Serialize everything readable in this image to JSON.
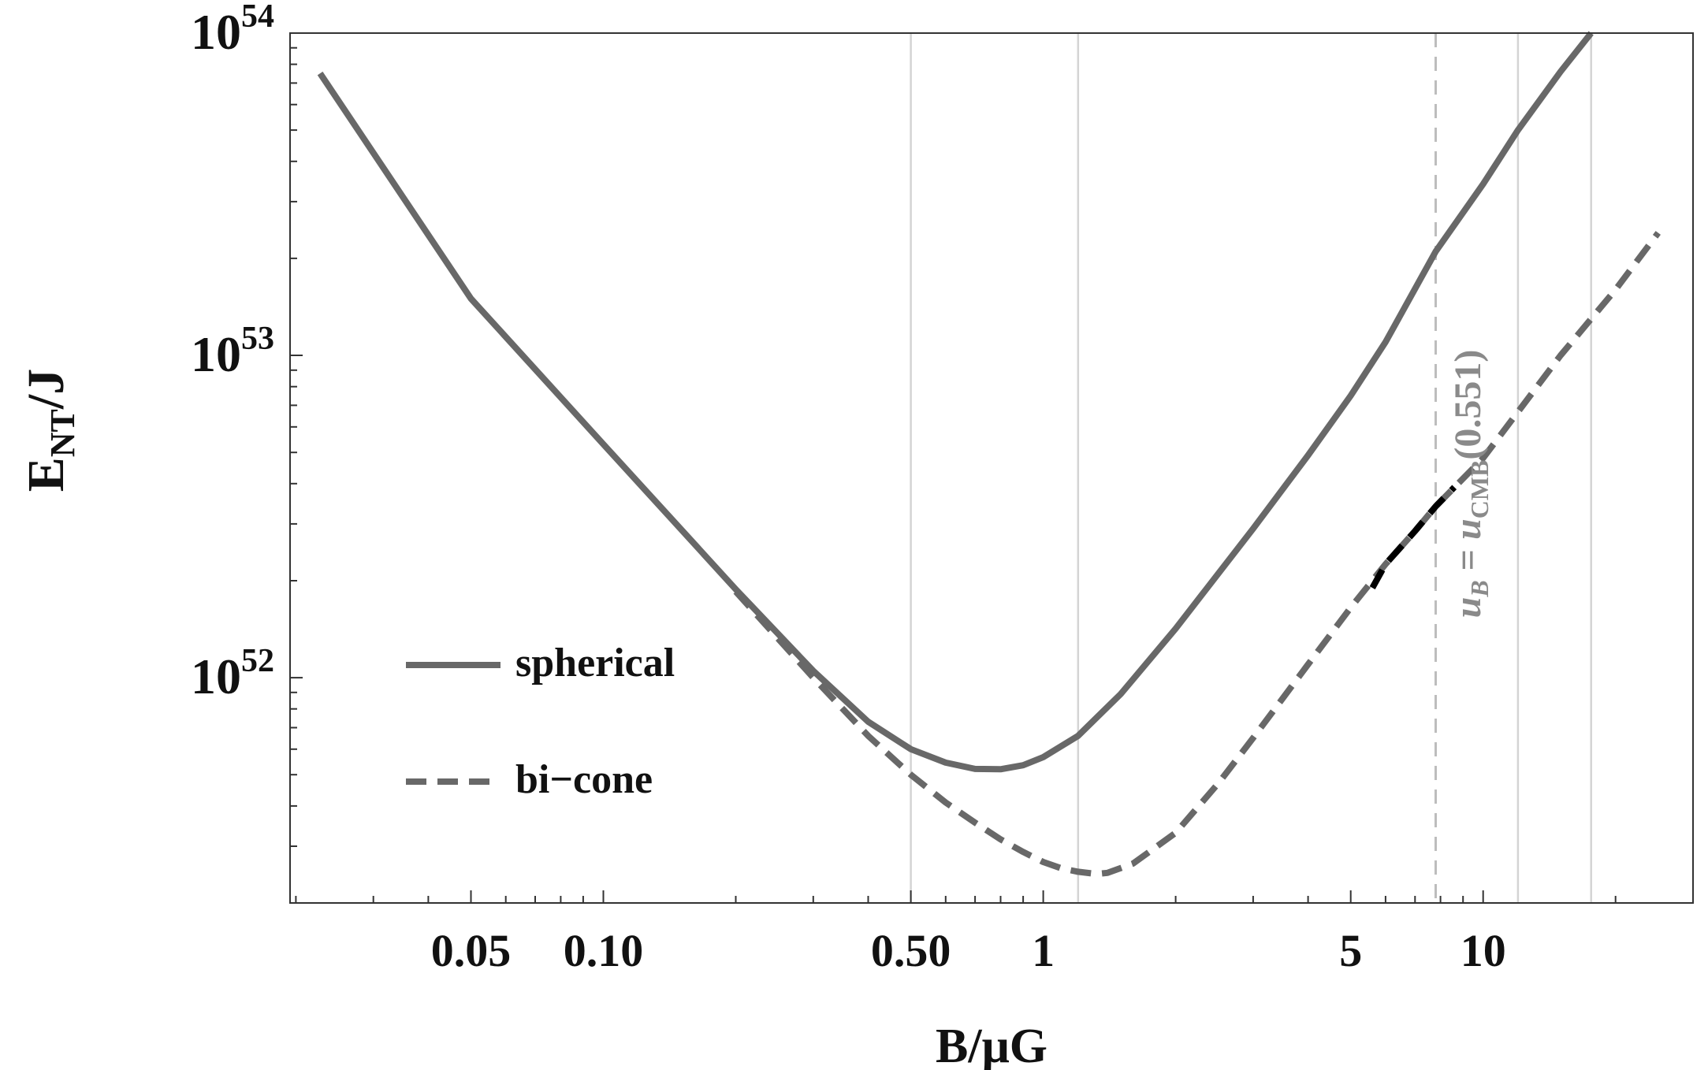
{
  "chart_data": {
    "type": "line",
    "xlabel": "B/μG",
    "ylabel": {
      "main": "E",
      "sub": "NT",
      "tail": "/J"
    },
    "x_scale": "log",
    "y_scale": "log",
    "xlim": [
      0.0194,
      30
    ],
    "ylim": [
      2e+51,
      1e+54
    ],
    "xticks": [
      {
        "value": 0.05,
        "label": "0.05"
      },
      {
        "value": 0.1,
        "label": "0.10"
      },
      {
        "value": 0.5,
        "label": "0.50"
      },
      {
        "value": 1,
        "label": "1"
      },
      {
        "value": 5,
        "label": "5"
      },
      {
        "value": 10,
        "label": "10"
      }
    ],
    "yticks": [
      {
        "value": 1e+52,
        "base": "10",
        "exp": "52"
      },
      {
        "value": 1e+53,
        "base": "10",
        "exp": "53"
      },
      {
        "value": 1e+54,
        "base": "10",
        "exp": "54"
      }
    ],
    "vertical_gridlines": [
      0.5,
      1.2,
      12,
      17.6
    ],
    "series": [
      {
        "name": "spherical",
        "style": "solid",
        "color": "#686868",
        "x": [
          0.0227,
          0.05,
          0.1,
          0.2,
          0.3,
          0.4,
          0.5,
          0.6,
          0.7,
          0.8,
          0.9,
          1.0,
          1.2,
          1.5,
          2.0,
          3.0,
          4.0,
          5.0,
          6.0,
          7.8,
          10,
          12,
          15,
          17.6
        ],
        "y": [
          7.5e+53,
          1.5e+53,
          5.3e+52,
          1.88e+52,
          1.05e+52,
          7.3e+51,
          6e+51,
          5.45e+51,
          5.21e+51,
          5.2e+51,
          5.35e+51,
          5.67e+51,
          6.6e+51,
          8.9e+51,
          1.42e+52,
          2.9e+52,
          4.9e+52,
          7.5e+52,
          1.1e+53,
          2.1e+53,
          3.4e+53,
          5e+53,
          7.6e+53,
          1e+54
        ]
      },
      {
        "name": "bi−cone",
        "style": "dashed",
        "color": "#686868",
        "x": [
          0.2,
          0.3,
          0.4,
          0.5,
          0.6,
          0.7,
          0.8,
          0.9,
          1.0,
          1.1,
          1.2,
          1.32,
          1.4,
          1.6,
          2.0,
          2.5,
          3.0,
          4.0,
          5.0,
          6.0,
          7.0,
          7.8,
          10,
          15,
          20,
          25
        ],
        "y": [
          1.85e+52,
          1e+52,
          6.6e+51,
          5e+51,
          4.1e+51,
          3.55e+51,
          3.15e+51,
          2.88e+51,
          2.68e+51,
          2.56e+51,
          2.5e+51,
          2.46e+51,
          2.48e+51,
          2.65e+51,
          3.3e+51,
          4.7e+51,
          6.5e+51,
          1.1e+52,
          1.65e+52,
          2.25e+52,
          2.85e+52,
          3.4e+52,
          4.8e+52,
          1e+53,
          1.6e+53,
          2.4e+53
        ]
      },
      {
        "name": "",
        "style": "dashed",
        "color": "#000000",
        "x": [
          5.6,
          6.0,
          7.0,
          7.8,
          8.6
        ],
        "y": [
          1.9e+52,
          2.25e+52,
          2.85e+52,
          3.4e+52,
          3.9e+52
        ]
      }
    ],
    "reference_line": {
      "x": 7.8,
      "label": "u_B = u_CMB(0.551)",
      "style": "dashed",
      "color": "#bdbdbd"
    },
    "legend": {
      "position": "lower-left"
    }
  },
  "annotation": {
    "pre": "u",
    "pre_sub": "B",
    "eq": " = ",
    "mid": "u",
    "mid_sub": "CMB",
    "tail": "(0.551)"
  }
}
